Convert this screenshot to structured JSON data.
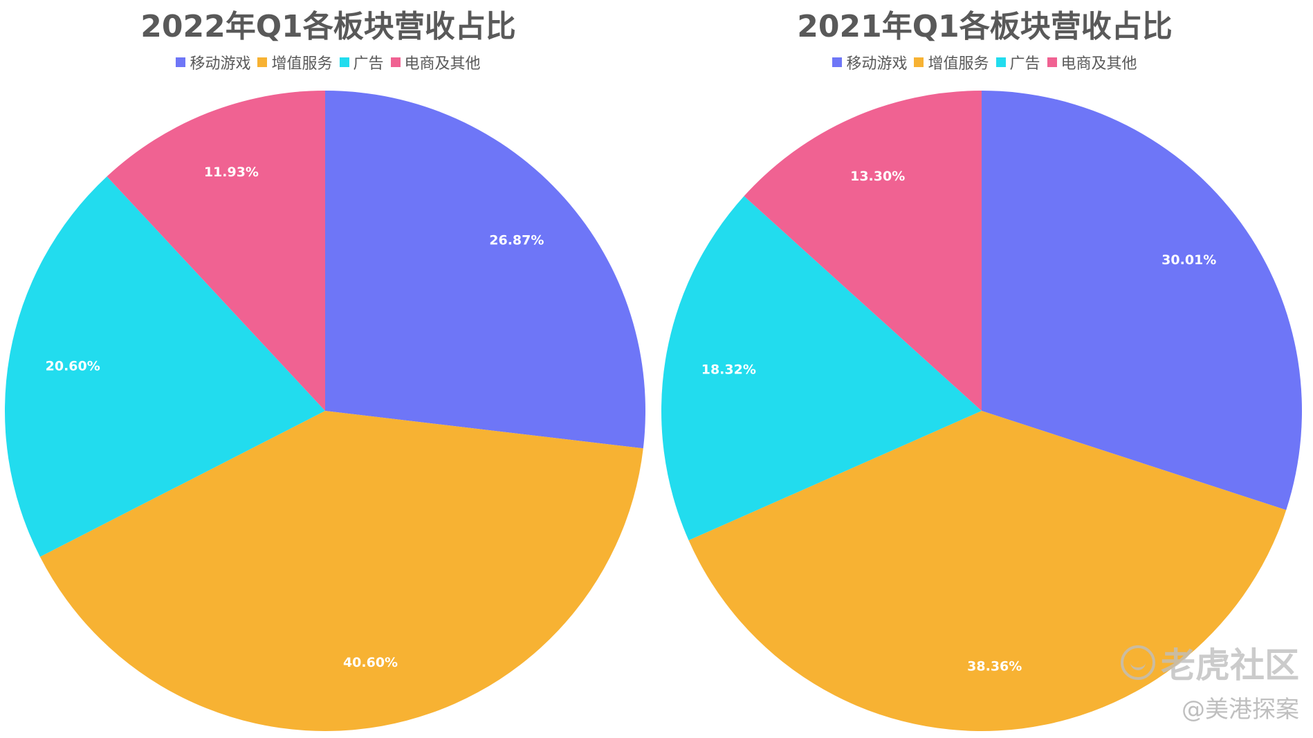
{
  "chart_data": [
    {
      "type": "pie",
      "title": "2022年Q1各板块营收占比",
      "legend": [
        "移动游戏",
        "增值服务",
        "广告",
        "电商及其他"
      ],
      "legend_position": "top",
      "slices": [
        {
          "label": "移动游戏",
          "value": 26.87,
          "display": "26.87%",
          "color": "#6e76f7"
        },
        {
          "label": "增值服务",
          "value": 40.6,
          "display": "40.60%",
          "color": "#f7b233"
        },
        {
          "label": "广告",
          "value": 20.6,
          "display": "20.60%",
          "color": "#22dcee"
        },
        {
          "label": "电商及其他",
          "value": 11.93,
          "display": "11.93%",
          "color": "#f06292"
        }
      ]
    },
    {
      "type": "pie",
      "title": "2021年Q1各板块营收占比",
      "legend": [
        "移动游戏",
        "增值服务",
        "广告",
        "电商及其他"
      ],
      "legend_position": "top",
      "slices": [
        {
          "label": "移动游戏",
          "value": 30.01,
          "display": "30.01%",
          "color": "#6e76f7"
        },
        {
          "label": "增值服务",
          "value": 38.36,
          "display": "38.36%",
          "color": "#f7b233"
        },
        {
          "label": "广告",
          "value": 18.32,
          "display": "18.32%",
          "color": "#22dcee"
        },
        {
          "label": "电商及其他",
          "value": 13.3,
          "display": "13.30%",
          "color": "#f06292"
        }
      ]
    }
  ],
  "watermark": {
    "brand": "老虎社区",
    "handle": "@美港探案"
  }
}
